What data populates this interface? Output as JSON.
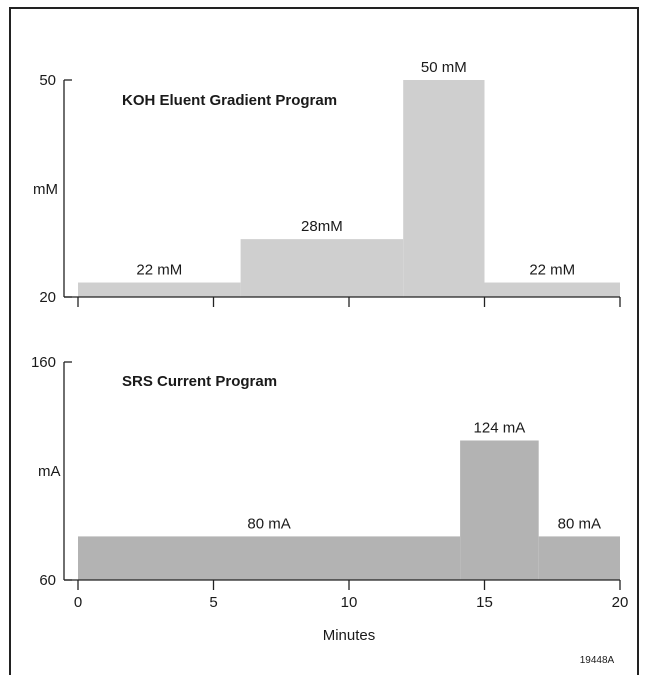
{
  "figure_id": "19448A",
  "x_axis": {
    "label": "Minutes",
    "ticks": [
      "0",
      "5",
      "10",
      "15",
      "20"
    ]
  },
  "chart_data": [
    {
      "type": "area",
      "title": "KOH Eluent Gradient Program",
      "xlabel": "",
      "ylabel": "mM",
      "xlim": [
        0,
        20
      ],
      "ylim": [
        20,
        50
      ],
      "y_ticks": [
        "20",
        "50"
      ],
      "color": "#cfcfcf",
      "steps": [
        {
          "x_start": 0,
          "x_end": 6,
          "y": 22,
          "label": "22 mM"
        },
        {
          "x_start": 6,
          "x_end": 12,
          "y": 28,
          "label": "28mM"
        },
        {
          "x_start": 12,
          "x_end": 15,
          "y": 50,
          "label": "50 mM"
        },
        {
          "x_start": 15,
          "x_end": 20,
          "y": 22,
          "label": "22 mM"
        }
      ]
    },
    {
      "type": "area",
      "title": "SRS Current Program",
      "xlabel": "Minutes",
      "ylabel": "mA",
      "xlim": [
        0,
        20
      ],
      "ylim": [
        60,
        160
      ],
      "y_ticks": [
        "60",
        "160"
      ],
      "color": "#b3b3b3",
      "steps": [
        {
          "x_start": 0,
          "x_end": 14.1,
          "y": 80,
          "label": "80 mA"
        },
        {
          "x_start": 14.1,
          "x_end": 17,
          "y": 124,
          "label": "124 mA"
        },
        {
          "x_start": 17,
          "x_end": 20,
          "y": 80,
          "label": "80 mA"
        }
      ]
    }
  ]
}
